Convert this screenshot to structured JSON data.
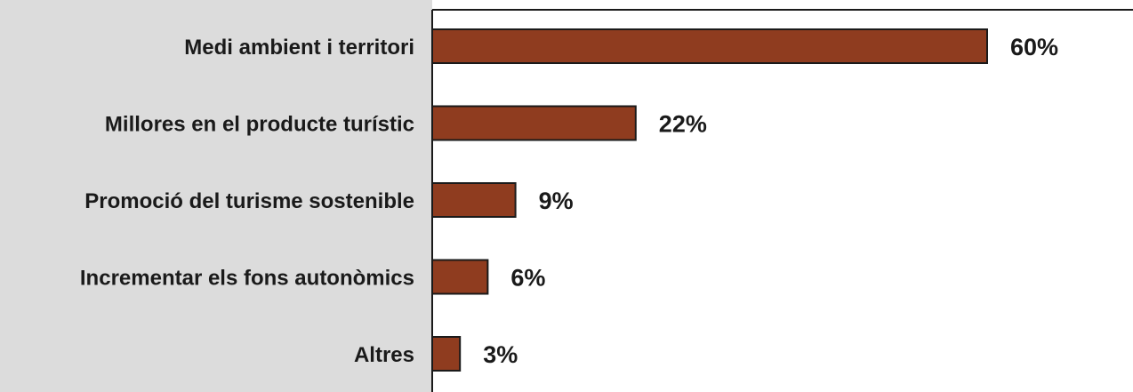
{
  "chart_data": {
    "type": "bar",
    "orientation": "horizontal",
    "categories": [
      "Medi ambient i territori",
      "Millores en el producte turístic",
      "Promoció del turisme sostenible",
      "Incrementar els fons autonòmics",
      "Altres"
    ],
    "values": [
      60,
      22,
      9,
      6,
      3
    ],
    "value_labels": [
      "60%",
      "22%",
      "9%",
      "6%",
      "3%"
    ],
    "unit": "%",
    "xlim": [
      0,
      75
    ],
    "title": "",
    "xlabel": "",
    "ylabel": "",
    "grid": false,
    "legend": "none",
    "colors": {
      "bar": "#8f3c1f",
      "plot_background": "#ffffff",
      "label_background": "#dcdcdc",
      "text": "#1a1a1a"
    }
  }
}
